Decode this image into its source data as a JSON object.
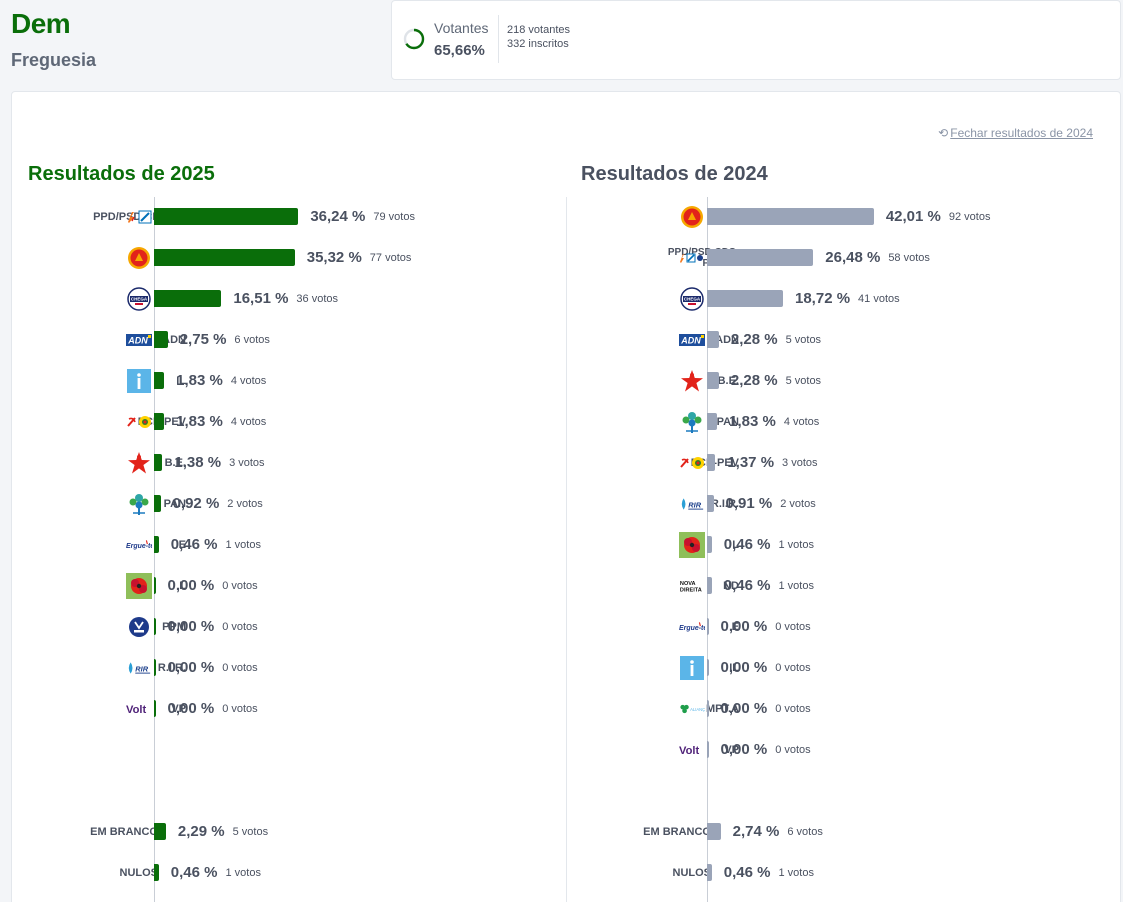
{
  "location": {
    "name": "Dem",
    "type": "Freguesia"
  },
  "turnout": {
    "label": "Votantes",
    "percent": "65,66%",
    "fraction": 0.6566,
    "votantes": "218 votantes",
    "inscritos": "332 inscritos"
  },
  "close_link": "Fechar resultados de 2024",
  "results_2025": {
    "title": "Resultados de 2025",
    "parties": [
      {
        "name": "PPD/PSD.CDS-PP",
        "logo": "ppd-cds-logo",
        "pct": "36,24 %",
        "value": 36.24,
        "votes": "79 votos"
      },
      {
        "name": "PS",
        "logo": "ps-logo",
        "pct": "35,32 %",
        "value": 35.32,
        "votes": "77 votos"
      },
      {
        "name": "CH",
        "logo": "ch-logo",
        "pct": "16,51 %",
        "value": 16.51,
        "votes": "36 votos"
      },
      {
        "name": "ADN",
        "logo": "adn-logo",
        "pct": "2,75 %",
        "value": 2.75,
        "votes": "6 votos"
      },
      {
        "name": "IL",
        "logo": "il-logo",
        "pct": "1,83 %",
        "value": 1.83,
        "votes": "4 votos"
      },
      {
        "name": "PCP-PEV",
        "logo": "pcp-pev-logo",
        "pct": "1,83 %",
        "value": 1.83,
        "votes": "4 votos"
      },
      {
        "name": "B.E.",
        "logo": "be-logo",
        "pct": "1,38 %",
        "value": 1.38,
        "votes": "3 votos"
      },
      {
        "name": "PAN",
        "logo": "pan-logo",
        "pct": "0,92 %",
        "value": 0.92,
        "votes": "2 votos"
      },
      {
        "name": "E",
        "logo": "ergue-te-logo",
        "pct": "0,46 %",
        "value": 0.46,
        "votes": "1 votos"
      },
      {
        "name": "L",
        "logo": "livre-logo",
        "pct": "0,00 %",
        "value": 0.0,
        "votes": "0 votos"
      },
      {
        "name": "PPM",
        "logo": "ppm-logo",
        "pct": "0,00 %",
        "value": 0.0,
        "votes": "0 votos"
      },
      {
        "name": "R.I.R.",
        "logo": "rir-logo",
        "pct": "0,00 %",
        "value": 0.0,
        "votes": "0 votos"
      },
      {
        "name": "VP",
        "logo": "volt-logo",
        "pct": "0,00 %",
        "value": 0.0,
        "votes": "0 votos"
      }
    ],
    "blank": {
      "name": "EM BRANCO",
      "pct": "2,29 %",
      "value": 2.29,
      "votes": "5 votos"
    },
    "null": {
      "name": "NULOS",
      "pct": "0,46 %",
      "value": 0.46,
      "votes": "1 votos"
    }
  },
  "results_2024": {
    "title": "Resultados de 2024",
    "parties": [
      {
        "name": "PS",
        "logo": "ps-logo",
        "pct": "42,01 %",
        "value": 42.01,
        "votes": "92 votos"
      },
      {
        "name": "PPD/PSD.CDS-PP.PPM",
        "name_lines": [
          "PPD/PSD.CDS-",
          "PP.PPM"
        ],
        "logo": "ad-logo",
        "pct": "26,48 %",
        "value": 26.48,
        "votes": "58 votos"
      },
      {
        "name": "CH",
        "logo": "ch-logo",
        "pct": "18,72 %",
        "value": 18.72,
        "votes": "41 votos"
      },
      {
        "name": "ADN",
        "logo": "adn-logo",
        "pct": "2,28 %",
        "value": 2.28,
        "votes": "5 votos"
      },
      {
        "name": "B.E.",
        "logo": "be-logo",
        "pct": "2,28 %",
        "value": 2.28,
        "votes": "5 votos"
      },
      {
        "name": "PAN",
        "logo": "pan-logo",
        "pct": "1,83 %",
        "value": 1.83,
        "votes": "4 votos"
      },
      {
        "name": "PCP-PEV",
        "logo": "pcp-pev-logo",
        "pct": "1,37 %",
        "value": 1.37,
        "votes": "3 votos"
      },
      {
        "name": "R.I.R.",
        "logo": "rir-logo",
        "pct": "0,91 %",
        "value": 0.91,
        "votes": "2 votos"
      },
      {
        "name": "L",
        "logo": "livre-logo",
        "pct": "0,46 %",
        "value": 0.46,
        "votes": "1 votos"
      },
      {
        "name": "ND",
        "logo": "nova-direita-logo",
        "pct": "0,46 %",
        "value": 0.46,
        "votes": "1 votos"
      },
      {
        "name": "E",
        "logo": "ergue-te-logo",
        "pct": "0,00 %",
        "value": 0.0,
        "votes": "0 votos"
      },
      {
        "name": "IL",
        "logo": "il-logo",
        "pct": "0,00 %",
        "value": 0.0,
        "votes": "0 votos"
      },
      {
        "name": "MPT.A",
        "logo": "mpt-logo",
        "pct": "0,00 %",
        "value": 0.0,
        "votes": "0 votos"
      },
      {
        "name": "VP",
        "logo": "volt-logo",
        "pct": "0,00 %",
        "value": 0.0,
        "votes": "0 votos"
      }
    ],
    "blank": {
      "name": "EM BRANCO",
      "pct": "2,74 %",
      "value": 2.74,
      "votes": "6 votos"
    },
    "null": {
      "name": "NULOS",
      "pct": "0,46 %",
      "value": 0.46,
      "votes": "1 votos"
    }
  },
  "logo_texts": {
    "adn": "ADN",
    "ergue": "Ergue-te",
    "rir": "RIR",
    "volt": "Volt",
    "nd": "NOVA DIREITA",
    "mpt": "ALIANÇA",
    "ch": "CHEGA"
  },
  "colors": {
    "accent_2025": "#0a6e0a",
    "bar_2024": "#9aa4b8",
    "text": "#4a5160"
  }
}
